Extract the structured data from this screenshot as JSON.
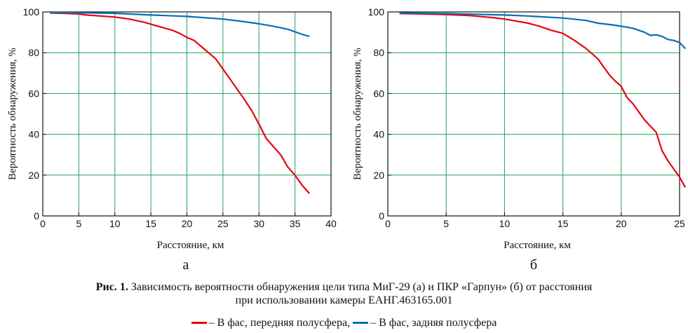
{
  "chart_data": [
    {
      "type": "line",
      "panel_label": "а",
      "xlabel": "Расстояние, км",
      "ylabel": "Вероятность обнаружения, %",
      "xlim": [
        0,
        40
      ],
      "ylim": [
        0,
        100
      ],
      "xticks": [
        0,
        5,
        10,
        15,
        20,
        25,
        30,
        35,
        40
      ],
      "yticks": [
        0,
        20,
        40,
        60,
        80,
        100
      ],
      "grid": true,
      "series": [
        {
          "name": "– В фас, передняя полусфера",
          "color": "#e30613",
          "x": [
            1,
            3,
            5,
            6,
            8,
            10,
            12,
            14,
            16,
            18,
            19,
            20,
            21,
            22,
            23,
            24,
            25,
            26,
            27,
            28,
            29,
            30,
            31,
            32,
            33,
            34,
            35,
            36,
            37
          ],
          "y": [
            99.5,
            99.3,
            99,
            98.5,
            98,
            97.5,
            96.5,
            95,
            93,
            91,
            89.5,
            87.5,
            86,
            83,
            80,
            77,
            72,
            67,
            62,
            57,
            51.5,
            45,
            38,
            34,
            30,
            24,
            20,
            15,
            11
          ]
        },
        {
          "name": "– В фас, задняя полусфера",
          "color": "#0a6eb4",
          "x": [
            1,
            5,
            10,
            15,
            20,
            25,
            28,
            30,
            32,
            34,
            36,
            37
          ],
          "y": [
            99.7,
            99.6,
            99.3,
            98.5,
            97.8,
            96.5,
            95.2,
            94.2,
            93,
            91.5,
            89,
            88
          ]
        }
      ]
    },
    {
      "type": "line",
      "panel_label": "б",
      "xlabel": "Расстояние, км",
      "ylabel": "Вероятность обнаружения, %",
      "xlim": [
        0,
        25
      ],
      "ylim": [
        0,
        100
      ],
      "xticks": [
        0,
        5,
        10,
        15,
        20,
        25
      ],
      "yticks": [
        0,
        20,
        40,
        60,
        80,
        100
      ],
      "grid": true,
      "series": [
        {
          "name": "– В фас, передняя полусфера",
          "color": "#e30613",
          "x": [
            1,
            3,
            5,
            7,
            9,
            10,
            11,
            12,
            13,
            14,
            15,
            16,
            17,
            18,
            18.5,
            19,
            19.5,
            20,
            20.5,
            21,
            21.5,
            22,
            22.5,
            23,
            23.5,
            24,
            24.5,
            25,
            25.5
          ],
          "y": [
            99.2,
            99,
            98.7,
            98.2,
            97.2,
            96.5,
            95.5,
            94.5,
            93,
            91,
            89.5,
            86,
            82,
            77,
            73,
            69,
            66,
            63.5,
            58,
            55,
            51,
            47,
            44,
            41,
            32,
            27,
            23,
            19,
            14
          ]
        },
        {
          "name": "– В фас, задняя полусфера",
          "color": "#0a6eb4",
          "x": [
            1,
            5,
            10,
            12,
            15,
            17,
            18,
            19,
            20,
            21,
            22,
            22.5,
            23,
            23.5,
            24,
            24.5,
            25,
            25.5
          ],
          "y": [
            99.5,
            99.2,
            98.5,
            98,
            97,
            95.8,
            94.5,
            93.8,
            93,
            92,
            90,
            88.5,
            88.8,
            88,
            86.5,
            86,
            85,
            82
          ]
        }
      ]
    }
  ],
  "caption": {
    "bold": "Рис. 1.",
    "line1": " Зависимость вероятности обнаружения цели типа МиГ-29 (а) и ПКР «Гарпун» (б) от расстояния",
    "line2": "при использовании камеры ЕАНГ.463165.001"
  },
  "legend": [
    {
      "label": "– В фас, передняя полусфера,",
      "color": "#e30613"
    },
    {
      "label": "– В фас, задняя полусфера",
      "color": "#0a6eb4"
    }
  ],
  "colors": {
    "grid": "#1aa55a",
    "axis": "#111111"
  }
}
